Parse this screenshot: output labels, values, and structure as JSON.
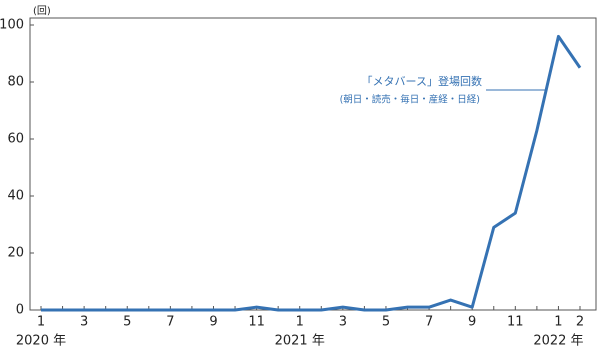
{
  "chart_data": {
    "type": "line",
    "unit_label": "(回)",
    "annotation": "「メタバース」登場回数",
    "annotation_sub": "(朝日・読売・毎日・産経・日経)",
    "categories": [
      "1",
      null,
      "3",
      null,
      "5",
      null,
      "7",
      null,
      "9",
      null,
      "11",
      null,
      "1",
      null,
      "3",
      null,
      "5",
      null,
      "7",
      null,
      "9",
      null,
      "11",
      null,
      "1",
      "2"
    ],
    "year_labels": [
      "2020 年",
      "2021 年",
      "2022 年"
    ],
    "series": [
      {
        "name": "「メタバース」登場回数",
        "color": "#3572b3",
        "values": [
          0,
          0,
          0,
          0,
          0,
          0,
          0,
          0,
          0,
          0,
          1,
          0,
          0,
          0,
          1,
          0,
          0,
          1,
          1,
          3.5,
          1,
          29,
          34,
          63,
          96,
          85
        ]
      }
    ],
    "ylim": [
      0,
      100
    ],
    "yticks": [
      0,
      20,
      40,
      60,
      80,
      100
    ],
    "grid": false
  }
}
